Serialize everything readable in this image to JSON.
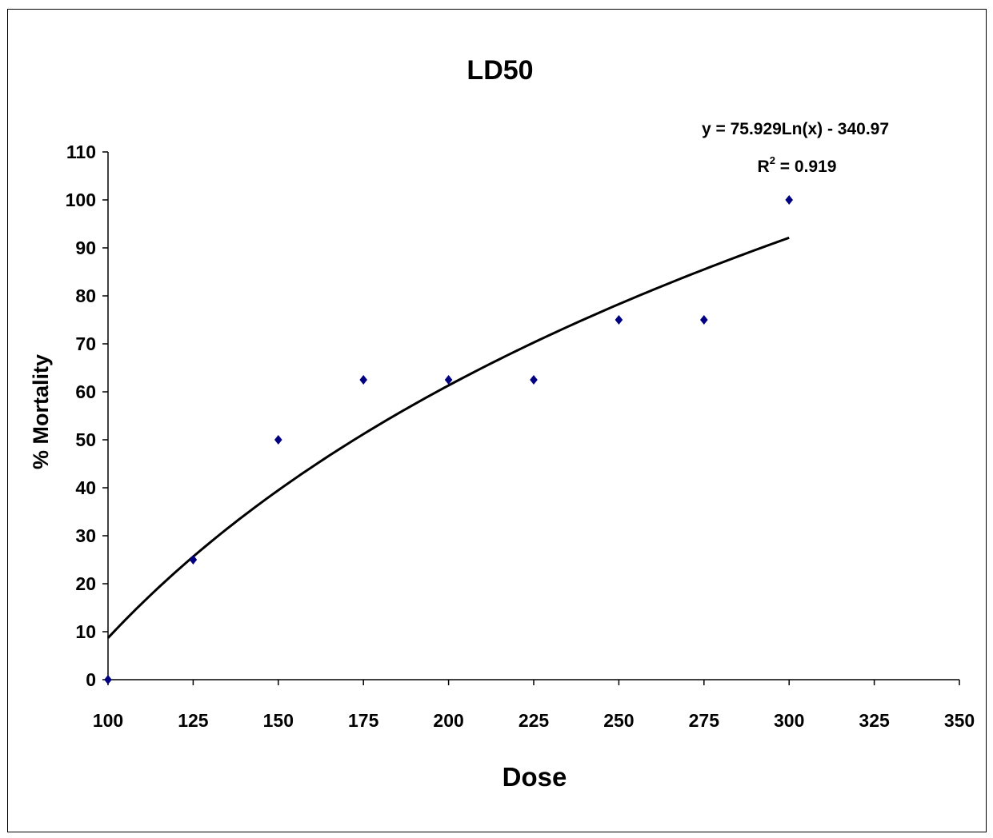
{
  "chart_data": {
    "type": "scatter",
    "title": "LD50",
    "xlabel": "Dose",
    "ylabel": "% Mortality",
    "xlim": [
      100,
      350
    ],
    "ylim": [
      0,
      110
    ],
    "x_ticks": [
      100,
      125,
      150,
      175,
      200,
      225,
      250,
      275,
      300,
      325,
      350
    ],
    "y_ticks": [
      0,
      10,
      20,
      30,
      40,
      50,
      60,
      70,
      80,
      90,
      100,
      110
    ],
    "grid": false,
    "series": [
      {
        "x": [
          100,
          125,
          150,
          175,
          200,
          225,
          250,
          275,
          300
        ],
        "y": [
          0,
          25,
          50,
          62.5,
          62.5,
          62.5,
          75,
          75,
          100
        ],
        "marker": "diamond",
        "color": "#000080"
      }
    ],
    "trendline": {
      "type": "logarithmic",
      "a": 75.929,
      "b": -340.97,
      "x_range": [
        100,
        300
      ],
      "color": "#000000",
      "equation_text": "y = 75.929Ln(x) - 340.97",
      "r2_prefix": "R",
      "r2_sup": "2",
      "r2_suffix": " = 0.919"
    }
  }
}
